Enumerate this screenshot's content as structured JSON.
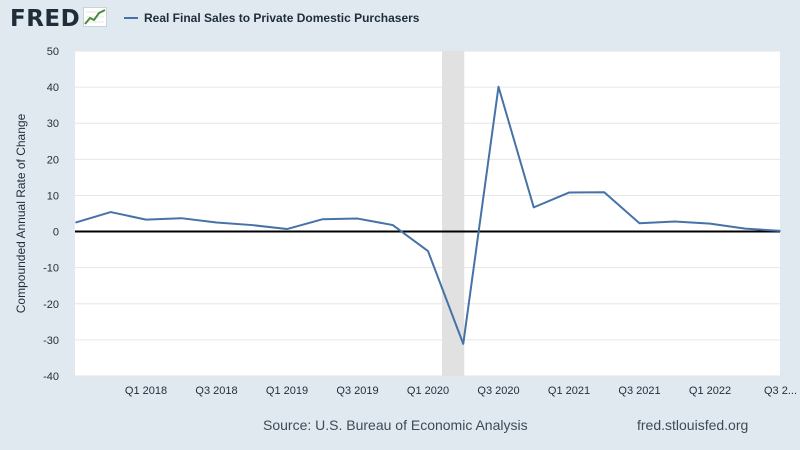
{
  "brand": {
    "name": "FRED",
    "icon": "trend-line-icon"
  },
  "colors": {
    "series": "#4572a7",
    "recession": "#e1e1e1",
    "zero_line": "#000000",
    "grid": "#e6e6e6",
    "background": "#e1e9f0"
  },
  "footer": {
    "source": "Source: U.S. Bureau of Economic Analysis",
    "site": "fred.stlouisfed.org"
  },
  "chart_data": {
    "type": "line",
    "ylabel": "Compounded Annual Rate of Change",
    "ylim": [
      -40,
      50
    ],
    "yticks": [
      50,
      40,
      30,
      20,
      10,
      0,
      -10,
      -20,
      -30,
      -40
    ],
    "grid": true,
    "legend_position": "top-left",
    "x": [
      "Q3 2017",
      "Q4 2017",
      "Q1 2018",
      "Q2 2018",
      "Q3 2018",
      "Q4 2018",
      "Q1 2019",
      "Q2 2019",
      "Q3 2019",
      "Q4 2019",
      "Q1 2020",
      "Q2 2020",
      "Q3 2020",
      "Q4 2020",
      "Q1 2021",
      "Q2 2021",
      "Q3 2021",
      "Q4 2021",
      "Q1 2022",
      "Q2 2022",
      "Q3 2022"
    ],
    "x_tick_labels": [
      {
        "at": "Q1 2018",
        "label": "Q1 2018"
      },
      {
        "at": "Q3 2018",
        "label": "Q3 2018"
      },
      {
        "at": "Q1 2019",
        "label": "Q1 2019"
      },
      {
        "at": "Q3 2019",
        "label": "Q3 2019"
      },
      {
        "at": "Q1 2020",
        "label": "Q1 2020"
      },
      {
        "at": "Q3 2020",
        "label": "Q3 2020"
      },
      {
        "at": "Q1 2021",
        "label": "Q1 2021"
      },
      {
        "at": "Q3 2021",
        "label": "Q3 2021"
      },
      {
        "at": "Q1 2022",
        "label": "Q1 2022"
      },
      {
        "at": "Q3 2022",
        "label": "Q3 2..."
      }
    ],
    "recession": {
      "start": "Q1 2020",
      "end": "Q2 2020"
    },
    "series": [
      {
        "name": "Real Final Sales to Private Domestic Purchasers",
        "values": [
          2.5,
          5.4,
          3.3,
          3.7,
          2.5,
          1.8,
          0.7,
          3.4,
          3.6,
          1.8,
          -5.4,
          -31.1,
          40.1,
          6.7,
          10.8,
          10.9,
          2.3,
          2.8,
          2.2,
          0.8,
          0.2
        ]
      }
    ]
  }
}
